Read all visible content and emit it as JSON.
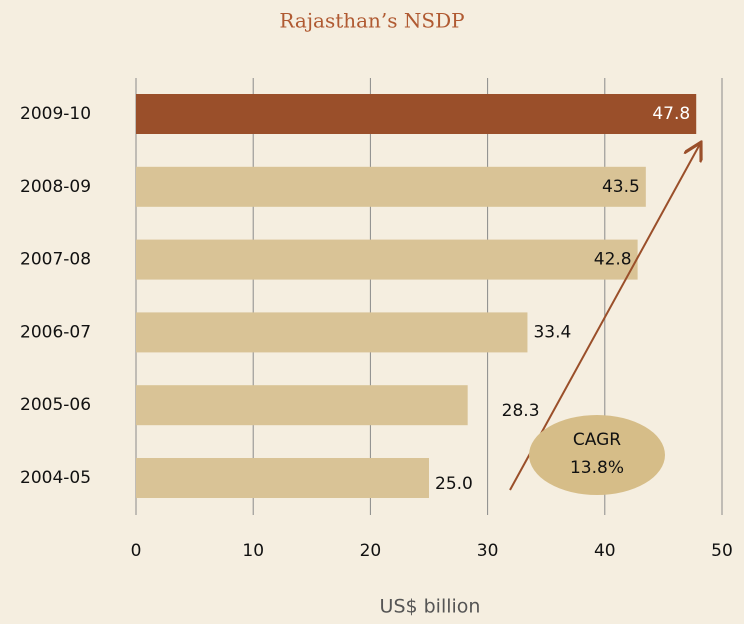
{
  "chart_data": {
    "type": "barh",
    "title": "Rajasthan’s NSDP",
    "categories": [
      "2009-10",
      "2008-09",
      "2007-08",
      "2006-07",
      "2005-06",
      "2004-05"
    ],
    "values": [
      47.8,
      43.5,
      42.8,
      33.4,
      28.3,
      25.0
    ],
    "value_labels": [
      "47.8",
      "43.5",
      "42.8",
      "33.4",
      "28.3",
      "25.0"
    ],
    "colors": [
      "#9a4f2a",
      "#d9c396",
      "#d9c396",
      "#d9c396",
      "#d9c396",
      "#d9c396"
    ],
    "xlim": [
      0,
      50
    ],
    "xticks": [
      0,
      10,
      20,
      30,
      40,
      50
    ],
    "grid": true,
    "xlabel": "US$ billion",
    "annotation": [
      "CAGR",
      "13.8%"
    ]
  }
}
